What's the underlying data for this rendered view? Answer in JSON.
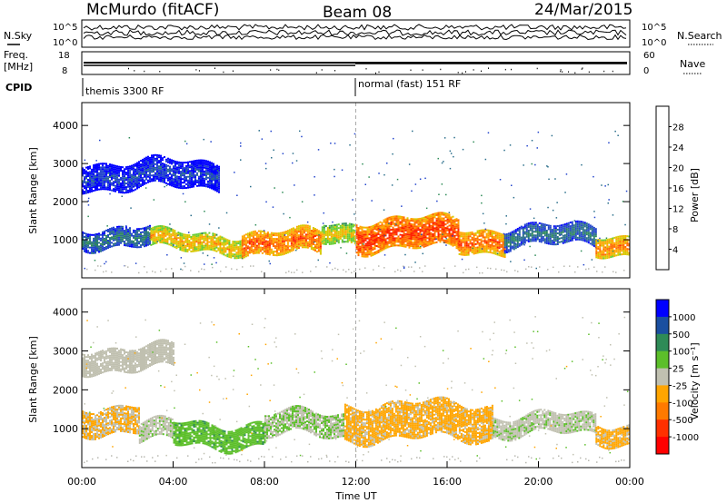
{
  "header": {
    "station": "McMurdo (fitACF)",
    "beam": "Beam 08",
    "date": "24/Mar/2015"
  },
  "strip_panels": {
    "nsky_label": "N.Sky",
    "nsky_ticks": [
      "10^5",
      "10^0"
    ],
    "nsearch_label": "N.Search",
    "nsearch_ticks": [
      "10^5",
      "10^0"
    ],
    "freq_label": "Freq.",
    "freq_unit": "[MHz]",
    "freq_ticks": [
      "18",
      "8"
    ],
    "nave_label": "Nave",
    "nave_ticks": [
      "60",
      "0"
    ],
    "cpid_label": "CPID",
    "cpid_segments": [
      "themis 3300 RF",
      "normal (fast) 151 RF"
    ]
  },
  "colors": {
    "power_scale": [
      "#0000ff",
      "#2244cc",
      "#2a6e8a",
      "#2e8b57",
      "#66cc33",
      "#d8c800",
      "#ffa500",
      "#ff6a00",
      "#ff2200"
    ],
    "velocity_scale": [
      "#0000ff",
      "#1a4fa0",
      "#2e8b57",
      "#5cbf2a",
      "#c0c0b0",
      "#ffa500",
      "#ff7a00",
      "#ff3000",
      "#ff0000"
    ]
  },
  "chart_data": [
    {
      "type": "heatmap",
      "panel": "power",
      "ylabel": "Slant Range [km]",
      "yticks": [
        1000,
        2000,
        3000,
        4000
      ],
      "ylim": [
        0,
        4600
      ],
      "xlim_hours": [
        0,
        24
      ],
      "colorbar": {
        "label": "Power [dB]",
        "ticks": [
          "4",
          "8",
          "12",
          "16",
          "20",
          "24",
          "28"
        ],
        "range": [
          0,
          30
        ]
      },
      "bands": [
        {
          "start_h": 0.0,
          "end_h": 3.0,
          "center_km": 1100,
          "width_km": 500,
          "level": 10
        },
        {
          "start_h": 3.0,
          "end_h": 7.0,
          "center_km": 950,
          "width_km": 450,
          "level": 22
        },
        {
          "start_h": 7.0,
          "end_h": 10.5,
          "center_km": 900,
          "width_km": 600,
          "level": 26
        },
        {
          "start_h": 10.5,
          "end_h": 12.0,
          "center_km": 1200,
          "width_km": 500,
          "level": 20
        },
        {
          "start_h": 12.0,
          "end_h": 16.5,
          "center_km": 1150,
          "width_km": 800,
          "level": 28
        },
        {
          "start_h": 16.5,
          "end_h": 18.5,
          "center_km": 1000,
          "width_km": 600,
          "level": 26
        },
        {
          "start_h": 18.5,
          "end_h": 22.5,
          "center_km": 1100,
          "width_km": 500,
          "level": 10
        },
        {
          "start_h": 22.5,
          "end_h": 24.0,
          "center_km": 900,
          "width_km": 500,
          "level": 24
        }
      ],
      "upper_band": {
        "start_h": 0.0,
        "end_h": 6.0,
        "center_km": 2700,
        "width_km": 700,
        "level": 6
      }
    },
    {
      "type": "heatmap",
      "panel": "velocity",
      "xlabel": "Time UT",
      "ylabel": "Slant Range [km]",
      "yticks": [
        1000,
        2000,
        3000,
        4000
      ],
      "ylim": [
        0,
        4600
      ],
      "xticks": [
        "00:00",
        "04:00",
        "08:00",
        "12:00",
        "16:00",
        "20:00",
        "00:00"
      ],
      "xlim_hours": [
        0,
        24
      ],
      "colorbar": {
        "label": "Velocity [m s⁻¹]",
        "ticks": [
          "-1000",
          "-500",
          "-100",
          "-25",
          "25",
          "100",
          "500",
          "1000"
        ],
        "range": [
          -1200,
          1200
        ]
      },
      "bands": [
        {
          "start_h": 0.0,
          "end_h": 2.5,
          "center_km": 1250,
          "width_km": 700,
          "velocity": -150
        },
        {
          "start_h": 2.5,
          "end_h": 4.0,
          "center_km": 900,
          "width_km": 500,
          "velocity": 60
        },
        {
          "start_h": 4.0,
          "end_h": 8.0,
          "center_km": 850,
          "width_km": 600,
          "velocity": 300
        },
        {
          "start_h": 8.0,
          "end_h": 11.5,
          "center_km": 1100,
          "width_km": 600,
          "velocity": 120
        },
        {
          "start_h": 11.5,
          "end_h": 18.0,
          "center_km": 1200,
          "width_km": 900,
          "velocity": -200
        },
        {
          "start_h": 18.0,
          "end_h": 22.5,
          "center_km": 1100,
          "width_km": 500,
          "velocity": 60
        },
        {
          "start_h": 22.5,
          "end_h": 24.0,
          "center_km": 900,
          "width_km": 500,
          "velocity": -200
        }
      ],
      "upper_band": {
        "start_h": 0.0,
        "end_h": 4.0,
        "center_km": 2800,
        "width_km": 600,
        "velocity": 0
      }
    }
  ]
}
